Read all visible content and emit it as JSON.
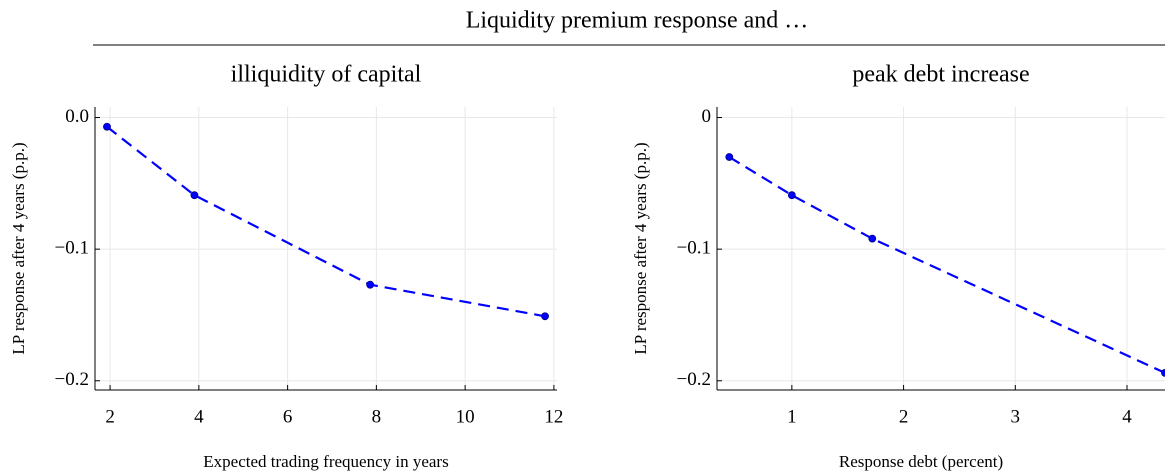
{
  "title": "Liquidity premium response and …",
  "chart_data": [
    {
      "type": "line",
      "title": "illiquidity of capital",
      "xlabel": "Expected trading frequency in years",
      "ylabel": "LP response after 4 years (p.p.)",
      "x": [
        1.93,
        3.9,
        7.86,
        11.8
      ],
      "values": [
        -0.007,
        -0.059,
        -0.127,
        -0.151
      ],
      "color": "#0000ff",
      "xlim": [
        1.66,
        12.07
      ],
      "xticks": [
        2,
        4,
        6,
        8,
        10,
        12
      ],
      "ylim": [
        -0.207,
        0.008
      ],
      "yticks": [
        {
          "value": 0,
          "label": "0.0"
        },
        {
          "value": -0.1,
          "label": "−0.1"
        },
        {
          "value": -0.2,
          "label": "−0.2"
        }
      ],
      "grid": true
    },
    {
      "type": "line",
      "title": "peak debt increase",
      "xlabel": "Response debt (percent)",
      "ylabel": "LP response after 4 years (p.p.)",
      "x": [
        0.44,
        1.0,
        1.72,
        4.34
      ],
      "values": [
        -0.03,
        -0.059,
        -0.092,
        -0.194
      ],
      "color": "#0000ff",
      "xlim": [
        0.33,
        4.34
      ],
      "xticks": [
        1,
        2,
        3,
        4
      ],
      "ylim": [
        -0.207,
        0.008
      ],
      "yticks": [
        0,
        {
          "value": -0.1,
          "label": "−0.1"
        },
        {
          "value": -0.2,
          "label": "−0.2"
        }
      ],
      "grid": true
    }
  ]
}
